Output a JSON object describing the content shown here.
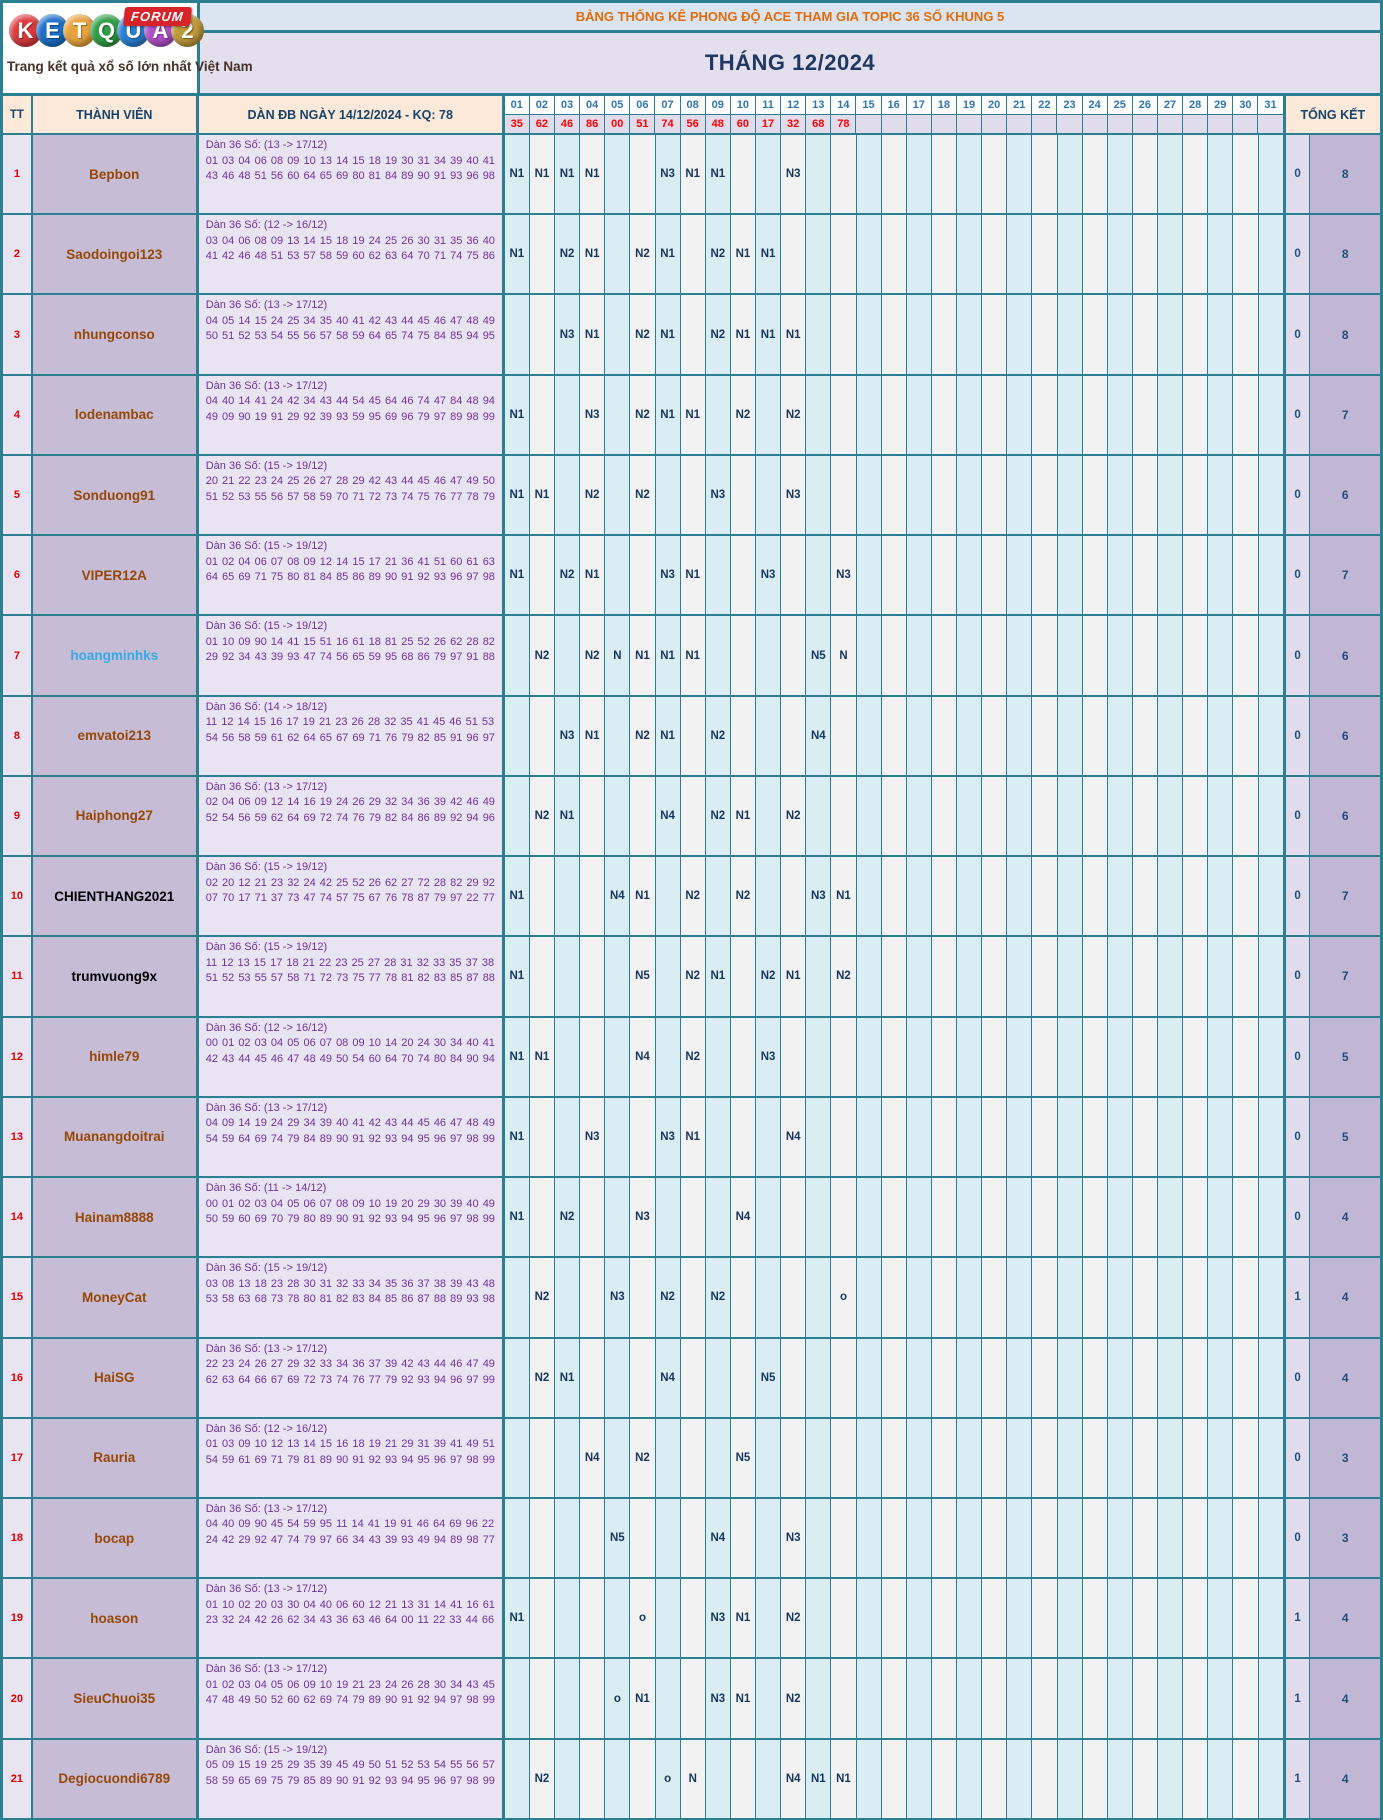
{
  "logo": {
    "letters": [
      {
        "ch": "K",
        "color": "#dd3a3e"
      },
      {
        "ch": "E",
        "color": "#1d6fc9"
      },
      {
        "ch": "T",
        "color": "#e8a33d"
      },
      {
        "ch": "Q",
        "color": "#2f9e44"
      },
      {
        "ch": "U",
        "color": "#2b7fd4"
      },
      {
        "ch": "A",
        "color": "#b14fc9"
      },
      {
        "ch": "2",
        "color": "#bf9a3a"
      }
    ],
    "forum": "FORUM",
    "tagline": "Trang kết quả xổ số lớn nhất Việt Nam"
  },
  "banner": {
    "title": "BẢNG THỐNG KÊ PHONG ĐỘ ACE THAM GIA TOPIC 36 SỐ KHUNG 5",
    "month": "THÁNG 12/2024"
  },
  "header": {
    "tt": "TT",
    "member": "THÀNH VIÊN",
    "dan": "DÀN ĐB NGÀY 14/12/2024 - KQ: 78",
    "total": "TỔNG KẾT"
  },
  "days": [
    "01",
    "02",
    "03",
    "04",
    "05",
    "06",
    "07",
    "08",
    "09",
    "10",
    "11",
    "12",
    "13",
    "14",
    "15",
    "16",
    "17",
    "18",
    "19",
    "20",
    "21",
    "22",
    "23",
    "24",
    "25",
    "26",
    "27",
    "28",
    "29",
    "30",
    "31"
  ],
  "kq": [
    "35",
    "62",
    "46",
    "86",
    "00",
    "51",
    "74",
    "56",
    "48",
    "60",
    "17",
    "32",
    "68",
    "78",
    "",
    "",
    "",
    "",
    "",
    "",
    "",
    "",
    "",
    "",
    "",
    "",
    "",
    "",
    "",
    "",
    ""
  ],
  "colors": {
    "border_teal": "#2c7f92",
    "header_peach": "#fde9d9",
    "kq_red": "#ff0000",
    "mark_navy": "#17365d",
    "member_brown": "#974806",
    "dan_purple": "#7030a0"
  },
  "rows": [
    {
      "tt": "1",
      "name": "Bepbon",
      "dan_title": "Dàn 36 Số: (13 -> 17/12)",
      "numbers": "01 03 04 06 08 09 10 13 14 15 18 19 30 31 34 39 40 41 43 46 48 51 56 60 64 65 69 80 81 84 89 90 91 93 96 98",
      "marks": {
        "1": "N1",
        "2": "N1",
        "3": "N1",
        "4": "N1",
        "7": "N3",
        "8": "N1",
        "9": "N1",
        "12": "N3"
      },
      "t1": "0",
      "t2": "8"
    },
    {
      "tt": "2",
      "name": "Saodoingoi123",
      "dan_title": "Dàn 36 Số: (12 -> 16/12)",
      "numbers": "03 04 06 08 09 13 14 15 18 19 24 25 26 30 31 35 36 40 41 42 46 48 51 53 57 58 59 60 62 63 64 70 71 74 75 86",
      "marks": {
        "1": "N1",
        "3": "N2",
        "4": "N1",
        "6": "N2",
        "7": "N1",
        "9": "N2",
        "10": "N1",
        "11": "N1"
      },
      "t1": "0",
      "t2": "8"
    },
    {
      "tt": "3",
      "name": "nhungconso",
      "dan_title": "Dàn 36 Số: (13 -> 17/12)",
      "numbers": "04 05 14 15 24 25 34 35 40 41 42 43 44 45 46 47 48 49 50 51 52 53 54 55 56 57 58 59 64 65 74 75 84 85 94 95",
      "marks": {
        "3": "N3",
        "4": "N1",
        "6": "N2",
        "7": "N1",
        "9": "N2",
        "10": "N1",
        "11": "N1",
        "12": "N1"
      },
      "t1": "0",
      "t2": "8"
    },
    {
      "tt": "4",
      "name": "lodenambac",
      "dan_title": "Dàn 36 Số: (13 -> 17/12)",
      "numbers": "04 40 14 41 24 42 34 43 44 54 45 64 46 74 47 84 48 94 49 09 90 19 91 29 92 39 93 59 95 69 96 79 97 89 98 99",
      "marks": {
        "1": "N1",
        "4": "N3",
        "6": "N2",
        "7": "N1",
        "8": "N1",
        "10": "N2",
        "12": "N2"
      },
      "t1": "0",
      "t2": "7"
    },
    {
      "tt": "5",
      "name": "Sonduong91",
      "dan_title": "Dàn 36 Số: (15 -> 19/12)",
      "numbers": "20 21 22 23 24 25 26 27 28 29 42 43 44 45 46 47 49 50 51 52 53 55 56 57 58 59 70 71 72 73 74 75 76 77 78 79",
      "marks": {
        "1": "N1",
        "2": "N1",
        "4": "N2",
        "6": "N2",
        "9": "N3",
        "12": "N3"
      },
      "t1": "0",
      "t2": "6"
    },
    {
      "tt": "6",
      "name": "VIPER12A",
      "dan_title": "Dàn 36 Số: (15 -> 19/12)",
      "numbers": "01 02 04 06 07 08 09 12 14 15 17 21 36 41 51 60 61 63 64 65 69 71 75 80 81 84 85 86 89 90 91 92 93 96 97 98",
      "marks": {
        "1": "N1",
        "3": "N2",
        "4": "N1",
        "7": "N3",
        "8": "N1",
        "11": "N3",
        "14": "N3"
      },
      "t1": "0",
      "t2": "7"
    },
    {
      "tt": "7",
      "name": "hoangminhks",
      "name_color": "#33ace4",
      "dan_title": "Dàn 36 Số: (15 -> 19/12)",
      "numbers": "01 10 09 90 14 41 15 51 16 61 18 81 25 52 26 62 28 82 29 92 34 43 39 93 47 74 56 65 59 95 68 86 79 97 91 88",
      "marks": {
        "2": "N2",
        "4": "N2",
        "5": "N",
        "6": "N1",
        "7": "N1",
        "8": "N1",
        "13": "N5",
        "14": "N"
      },
      "t1": "0",
      "t2": "6"
    },
    {
      "tt": "8",
      "name": "emvatoi213",
      "dan_title": "Dàn 36 Số: (14 -> 18/12)",
      "numbers": "11 12 14 15 16 17 19 21 23 26 28 32 35 41 45 46 51 53 54 56 58 59 61 62 64 65 67 69 71 76 79 82 85 91 96 97",
      "marks": {
        "3": "N3",
        "4": "N1",
        "6": "N2",
        "7": "N1",
        "9": "N2",
        "13": "N4"
      },
      "t1": "0",
      "t2": "6"
    },
    {
      "tt": "9",
      "name": "Haiphong27",
      "dan_title": "Dàn 36 Số: (13 -> 17/12)",
      "numbers": "02 04 06 09 12 14 16 19 24 26 29 32 34 36 39 42 46 49 52 54 56 59 62 64 69 72 74 76 79 82 84 86 89 92 94 96",
      "marks": {
        "2": "N2",
        "3": "N1",
        "7": "N4",
        "9": "N2",
        "10": "N1",
        "12": "N2"
      },
      "t1": "0",
      "t2": "6"
    },
    {
      "tt": "10",
      "name": "CHIENTHANG2021",
      "name_color": "#000000",
      "dan_title": "Dàn 36 Số: (15 -> 19/12)",
      "numbers": "02 20 12 21 23 32 24 42 25 52 26 62 27 72 28 82 29 92 07 70 17 71 37 73 47 74 57 75 67 76 78 87 79 97 22 77",
      "marks": {
        "1": "N1",
        "5": "N4",
        "6": "N1",
        "8": "N2",
        "10": "N2",
        "13": "N3",
        "14": "N1"
      },
      "t1": "0",
      "t2": "7"
    },
    {
      "tt": "11",
      "name": "trumvuong9x",
      "name_color": "#000000",
      "dan_title": "Dàn 36 Số: (15 -> 19/12)",
      "numbers": "11 12 13 15 17 18 21 22 23 25 27 28 31 32 33 35 37 38 51 52 53 55 57 58 71 72 73 75 77 78 81 82 83 85 87 88",
      "marks": {
        "1": "N1",
        "6": "N5",
        "8": "N2",
        "9": "N1",
        "11": "N2",
        "12": "N1",
        "14": "N2"
      },
      "t1": "0",
      "t2": "7"
    },
    {
      "tt": "12",
      "name": "himle79",
      "dan_title": "Dàn 36 Số: (12 -> 16/12)",
      "numbers": "00 01 02 03 04 05 06 07 08 09 10 14 20 24 30 34 40 41 42 43 44 45 46 47 48 49 50 54 60 64 70 74 80 84 90 94",
      "marks": {
        "1": "N1",
        "2": "N1",
        "6": "N4",
        "8": "N2",
        "11": "N3"
      },
      "t1": "0",
      "t2": "5"
    },
    {
      "tt": "13",
      "name": "Muanangdoitrai",
      "dan_title": "Dàn 36 Số: (13 -> 17/12)",
      "numbers": "04 09 14 19 24 29 34 39 40 41 42 43 44 45 46 47 48 49 54 59 64 69 74 79 84 89 90 91 92 93 94 95 96 97 98 99",
      "marks": {
        "1": "N1",
        "4": "N3",
        "7": "N3",
        "8": "N1",
        "12": "N4"
      },
      "t1": "0",
      "t2": "5"
    },
    {
      "tt": "14",
      "name": "Hainam8888",
      "dan_title": "Dàn 36 Số: (11 -> 14/12)",
      "numbers": "00 01 02 03 04 05 06 07 08 09 10 19 20 29 30 39 40 49 50 59 60 69 70 79 80 89 90 91 92 93 94 95 96 97 98 99",
      "marks": {
        "1": "N1",
        "3": "N2",
        "6": "N3",
        "10": "N4"
      },
      "t1": "0",
      "t2": "4"
    },
    {
      "tt": "15",
      "name": "MoneyCat",
      "dan_title": "Dàn 36 Số: (15 -> 19/12)",
      "numbers": "03 08 13 18 23 28 30 31 32 33 34 35 36 37 38 39 43 48 53 58 63 68 73 78 80 81 82 83 84 85 86 87 88 89 93 98",
      "marks": {
        "2": "N2",
        "5": "N3",
        "7": "N2",
        "9": "N2",
        "14": "o"
      },
      "t1": "1",
      "t2": "4"
    },
    {
      "tt": "16",
      "name": "HaiSG",
      "dan_title": "Dàn 36 Số: (13 -> 17/12)",
      "numbers": "22 23 24 26 27 29 32 33 34 36 37 39 42 43 44 46 47 49 62 63 64 66 67 69 72 73 74 76 77 79 92 93 94 96 97 99",
      "marks": {
        "2": "N2",
        "3": "N1",
        "7": "N4",
        "11": "N5"
      },
      "t1": "0",
      "t2": "4"
    },
    {
      "tt": "17",
      "name": "Rauria",
      "dan_title": "Dàn 36 Số: (12 -> 16/12)",
      "numbers": "01 03 09 10 12 13 14 15 16 18 19 21 29 31 39 41 49 51 54 59 61 69 71 79 81 89 90 91 92 93 94 95 96 97 98 99",
      "marks": {
        "4": "N4",
        "6": "N2",
        "10": "N5"
      },
      "t1": "0",
      "t2": "3"
    },
    {
      "tt": "18",
      "name": "bocap",
      "dan_title": "Dàn 36 Số: (13 -> 17/12)",
      "numbers": "04 40 09 90 45 54 59 95 11 14 41 19 91 46 64 69 96 22 24 42 29 92 47 74 79 97 66 34 43 39 93 49 94 89 98 77",
      "marks": {
        "5": "N5",
        "9": "N4",
        "12": "N3"
      },
      "t1": "0",
      "t2": "3"
    },
    {
      "tt": "19",
      "name": "hoason",
      "dan_title": "Dàn 36 Số: (13 -> 17/12)",
      "numbers": "01 10 02 20 03 30 04 40 06 60 12 21 13 31 14 41 16 61 23 32 24 42 26 62 34 43 36 63 46 64 00 11 22 33 44 66",
      "marks": {
        "1": "N1",
        "6": "o",
        "9": "N3",
        "10": "N1",
        "12": "N2"
      },
      "t1": "1",
      "t2": "4"
    },
    {
      "tt": "20",
      "name": "SieuChuoi35",
      "dan_title": "Dàn 36 Số: (13 -> 17/12)",
      "numbers": "01 02 03 04 05 06 09 10 19 21 23 24 26 28 30 34 43 45 47 48 49 50 52 60 62 69 74 79 89 90 91 92 94 97 98 99",
      "marks": {
        "5": "o",
        "6": "N1",
        "9": "N3",
        "10": "N1",
        "12": "N2"
      },
      "t1": "1",
      "t2": "4"
    },
    {
      "tt": "21",
      "name": "Degiocuondi6789",
      "dan_title": "Dàn 36 Số: (15 -> 19/12)",
      "numbers": "05 09 15 19 25 29 35 39 45 49 50 51 52 53 54 55 56 57 58 59 65 69 75 79 85 89 90 91 92 93 94 95 96 97 98 99",
      "marks": {
        "2": "N2",
        "7": "o",
        "8": "N",
        "12": "N4",
        "13": "N1",
        "14": "N1"
      },
      "t1": "1",
      "t2": "4"
    }
  ]
}
